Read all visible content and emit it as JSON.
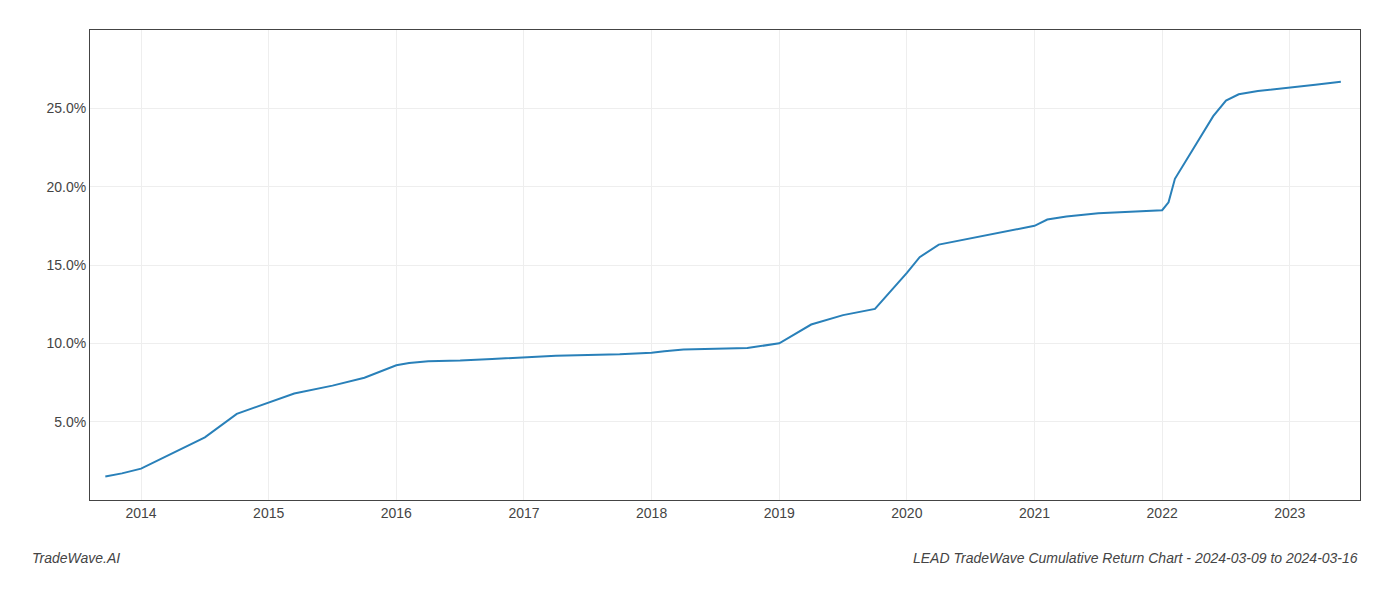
{
  "chart_data": {
    "type": "line",
    "title": "LEAD TradeWave Cumulative Return Chart - 2024-03-09 to 2024-03-16",
    "annotations": [
      "TradeWave.AI"
    ],
    "x": [
      2013.72,
      2013.85,
      2014.0,
      2014.2,
      2014.5,
      2014.75,
      2015.0,
      2015.2,
      2015.5,
      2015.75,
      2016.0,
      2016.1,
      2016.25,
      2016.5,
      2016.75,
      2017.0,
      2017.25,
      2017.5,
      2017.75,
      2018.0,
      2018.1,
      2018.25,
      2018.5,
      2018.75,
      2019.0,
      2019.1,
      2019.25,
      2019.5,
      2019.75,
      2020.0,
      2020.1,
      2020.25,
      2020.5,
      2020.75,
      2021.0,
      2021.1,
      2021.25,
      2021.5,
      2021.75,
      2022.0,
      2022.05,
      2022.1,
      2022.25,
      2022.4,
      2022.5,
      2022.6,
      2022.75,
      2023.0,
      2023.2,
      2023.4
    ],
    "values": [
      1.5,
      1.7,
      2.0,
      2.8,
      4.0,
      5.5,
      6.2,
      6.8,
      7.3,
      7.8,
      8.6,
      8.75,
      8.85,
      8.9,
      9.0,
      9.1,
      9.2,
      9.25,
      9.3,
      9.4,
      9.5,
      9.6,
      9.65,
      9.7,
      10.0,
      10.5,
      11.2,
      11.8,
      12.2,
      14.5,
      15.5,
      16.3,
      16.7,
      17.1,
      17.5,
      17.9,
      18.1,
      18.3,
      18.4,
      18.5,
      19.0,
      20.5,
      22.5,
      24.5,
      25.5,
      25.9,
      26.1,
      26.3,
      26.5,
      26.7
    ],
    "color": "#2980b9",
    "xlim": [
      2013.6,
      2023.55
    ],
    "xticks": [
      2014,
      2015,
      2016,
      2017,
      2018,
      2019,
      2020,
      2021,
      2022,
      2023
    ],
    "ylim": [
      0.0,
      30.0
    ],
    "yticks": [
      {
        "value": 5.0,
        "label": "5.0%"
      },
      {
        "value": 10.0,
        "label": "10.0%"
      },
      {
        "value": 15.0,
        "label": "15.0%"
      },
      {
        "value": 20.0,
        "label": "20.0%"
      },
      {
        "value": 25.0,
        "label": "25.0%"
      }
    ],
    "grid": true
  }
}
